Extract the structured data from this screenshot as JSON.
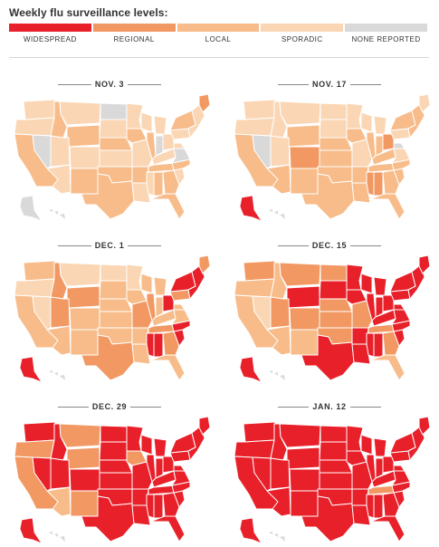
{
  "header": {
    "title": "Weekly flu surveillance levels:"
  },
  "legend": [
    {
      "key": "widespread",
      "label": "WIDESPREAD",
      "color": "#e8202a"
    },
    {
      "key": "regional",
      "label": "REGIONAL",
      "color": "#f19863"
    },
    {
      "key": "local",
      "label": "LOCAL",
      "color": "#f7bc8a"
    },
    {
      "key": "sporadic",
      "label": "SPORADIC",
      "color": "#fad6b4"
    },
    {
      "key": "none",
      "label": "NONE REPORTED",
      "color": "#d9d9d9"
    }
  ],
  "maps": [
    {
      "date": "NOV. 3",
      "alaska": "none",
      "hawaii": "none",
      "states": {
        "WA": "sporadic",
        "OR": "sporadic",
        "CA": "local",
        "ID": "local",
        "NV": "none",
        "MT": "sporadic",
        "WY": "local",
        "UT": "sporadic",
        "AZ": "sporadic",
        "CO": "sporadic",
        "NM": "local",
        "ND": "none",
        "SD": "sporadic",
        "NE": "local",
        "KS": "sporadic",
        "OK": "local",
        "TX": "local",
        "MN": "sporadic",
        "IA": "local",
        "MO": "sporadic",
        "AR": "local",
        "LA": "sporadic",
        "WI": "sporadic",
        "IL": "local",
        "MI": "sporadic",
        "IN": "none",
        "OH": "sporadic",
        "KY": "sporadic",
        "TN": "local",
        "MS": "sporadic",
        "AL": "local",
        "GA": "local",
        "FL": "local",
        "SC": "sporadic",
        "NC": "local",
        "VA": "none",
        "WV": "sporadic",
        "PA": "sporadic",
        "NY": "local",
        "ME": "regional",
        "NE_REGION": "sporadic"
      }
    },
    {
      "date": "NOV. 17",
      "alaska": "widespread",
      "hawaii": "none",
      "states": {
        "WA": "sporadic",
        "OR": "sporadic",
        "CA": "local",
        "ID": "sporadic",
        "NV": "none",
        "MT": "sporadic",
        "WY": "local",
        "UT": "sporadic",
        "AZ": "local",
        "CO": "regional",
        "NM": "local",
        "ND": "sporadic",
        "SD": "sporadic",
        "NE": "local",
        "KS": "local",
        "OK": "local",
        "TX": "local",
        "MN": "sporadic",
        "IA": "local",
        "MO": "sporadic",
        "AR": "local",
        "LA": "local",
        "WI": "sporadic",
        "IL": "local",
        "MI": "sporadic",
        "IN": "local",
        "OH": "regional",
        "KY": "local",
        "TN": "local",
        "MS": "regional",
        "AL": "regional",
        "GA": "local",
        "FL": "local",
        "SC": "local",
        "NC": "local",
        "VA": "sporadic",
        "WV": "none",
        "PA": "sporadic",
        "NY": "local",
        "ME": "sporadic",
        "NE_REGION": "local"
      }
    },
    {
      "date": "DEC. 1",
      "alaska": "widespread",
      "hawaii": "none",
      "states": {
        "WA": "local",
        "OR": "sporadic",
        "CA": "local",
        "ID": "regional",
        "NV": "sporadic",
        "MT": "sporadic",
        "WY": "regional",
        "UT": "regional",
        "AZ": "local",
        "CO": "local",
        "NM": "local",
        "ND": "sporadic",
        "SD": "local",
        "NE": "local",
        "KS": "local",
        "OK": "local",
        "TX": "regional",
        "MN": "sporadic",
        "IA": "local",
        "MO": "regional",
        "AR": "local",
        "LA": "local",
        "WI": "local",
        "IL": "regional",
        "MI": "local",
        "IN": "local",
        "OH": "widespread",
        "KY": "local",
        "TN": "regional",
        "MS": "widespread",
        "AL": "widespread",
        "GA": "regional",
        "FL": "local",
        "SC": "widespread",
        "NC": "widespread",
        "VA": "local",
        "WV": "local",
        "PA": "regional",
        "NY": "widespread",
        "ME": "regional",
        "NE_REGION": "widespread"
      }
    },
    {
      "date": "DEC. 15",
      "alaska": "widespread",
      "hawaii": "none",
      "states": {
        "WA": "regional",
        "OR": "local",
        "CA": "local",
        "ID": "local",
        "NV": "sporadic",
        "MT": "regional",
        "WY": "widespread",
        "UT": "regional",
        "AZ": "local",
        "CO": "regional",
        "NM": "local",
        "ND": "regional",
        "SD": "widespread",
        "NE": "regional",
        "KS": "regional",
        "OK": "regional",
        "TX": "widespread",
        "MN": "widespread",
        "IA": "widespread",
        "MO": "regional",
        "AR": "widespread",
        "LA": "widespread",
        "WI": "widespread",
        "IL": "widespread",
        "MI": "widespread",
        "IN": "widespread",
        "OH": "widespread",
        "KY": "widespread",
        "TN": "regional",
        "MS": "widespread",
        "AL": "widespread",
        "GA": "regional",
        "FL": "local",
        "SC": "widespread",
        "NC": "widespread",
        "VA": "widespread",
        "WV": "widespread",
        "PA": "widespread",
        "NY": "widespread",
        "ME": "widespread",
        "NE_REGION": "widespread"
      }
    },
    {
      "date": "DEC. 29",
      "alaska": "widespread",
      "hawaii": "none",
      "states": {
        "WA": "widespread",
        "OR": "regional",
        "CA": "regional",
        "ID": "widespread",
        "NV": "widespread",
        "MT": "regional",
        "WY": "regional",
        "UT": "widespread",
        "AZ": "local",
        "CO": "widespread",
        "NM": "regional",
        "ND": "widespread",
        "SD": "widespread",
        "NE": "widespread",
        "KS": "widespread",
        "OK": "widespread",
        "TX": "widespread",
        "MN": "widespread",
        "IA": "regional",
        "MO": "widespread",
        "AR": "widespread",
        "LA": "widespread",
        "WI": "widespread",
        "IL": "widespread",
        "MI": "widespread",
        "IN": "widespread",
        "OH": "widespread",
        "KY": "widespread",
        "TN": "widespread",
        "MS": "widespread",
        "AL": "widespread",
        "GA": "widespread",
        "FL": "widespread",
        "SC": "widespread",
        "NC": "widespread",
        "VA": "widespread",
        "WV": "widespread",
        "PA": "widespread",
        "NY": "widespread",
        "ME": "widespread",
        "NE_REGION": "widespread"
      }
    },
    {
      "date": "JAN. 12",
      "alaska": "widespread",
      "hawaii": "none",
      "states": {
        "WA": "widespread",
        "OR": "widespread",
        "CA": "widespread",
        "ID": "widespread",
        "NV": "widespread",
        "MT": "widespread",
        "WY": "widespread",
        "UT": "widespread",
        "AZ": "widespread",
        "CO": "widespread",
        "NM": "widespread",
        "ND": "widespread",
        "SD": "widespread",
        "NE": "widespread",
        "KS": "widespread",
        "OK": "widespread",
        "TX": "widespread",
        "MN": "widespread",
        "IA": "widespread",
        "MO": "widespread",
        "AR": "widespread",
        "LA": "widespread",
        "WI": "widespread",
        "IL": "widespread",
        "MI": "widespread",
        "IN": "widespread",
        "OH": "widespread",
        "KY": "widespread",
        "TN": "regional",
        "MS": "widespread",
        "AL": "widespread",
        "GA": "widespread",
        "FL": "widespread",
        "SC": "widespread",
        "NC": "widespread",
        "VA": "widespread",
        "WV": "widespread",
        "PA": "widespread",
        "NY": "widespread",
        "ME": "widespread",
        "NE_REGION": "widespread"
      }
    }
  ]
}
